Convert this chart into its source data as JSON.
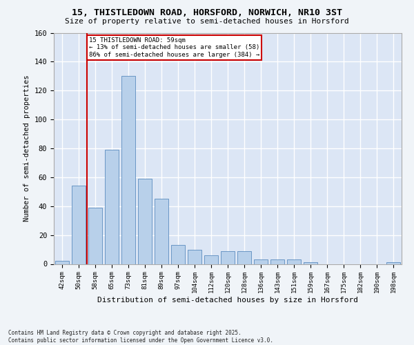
{
  "title_line1": "15, THISTLEDOWN ROAD, HORSFORD, NORWICH, NR10 3ST",
  "title_line2": "Size of property relative to semi-detached houses in Horsford",
  "xlabel": "Distribution of semi-detached houses by size in Horsford",
  "ylabel": "Number of semi-detached properties",
  "categories": [
    "42sqm",
    "50sqm",
    "58sqm",
    "65sqm",
    "73sqm",
    "81sqm",
    "89sqm",
    "97sqm",
    "104sqm",
    "112sqm",
    "120sqm",
    "128sqm",
    "136sqm",
    "143sqm",
    "151sqm",
    "159sqm",
    "167sqm",
    "175sqm",
    "182sqm",
    "190sqm",
    "198sqm"
  ],
  "values": [
    2,
    54,
    39,
    79,
    130,
    59,
    45,
    13,
    10,
    6,
    9,
    9,
    3,
    3,
    3,
    1,
    0,
    0,
    0,
    0,
    1
  ],
  "bar_color": "#b8d0ea",
  "bar_edge_color": "#5b8cbf",
  "bg_color": "#dce6f5",
  "grid_color": "#ffffff",
  "vline_x_index": 1.5,
  "property_label": "15 THISTLEDOWN ROAD: 59sqm",
  "annotation_line1": "← 13% of semi-detached houses are smaller (58)",
  "annotation_line2": "86% of semi-detached houses are larger (384) →",
  "annotation_box_facecolor": "#ffffff",
  "annotation_box_edgecolor": "#cc0000",
  "vline_color": "#cc0000",
  "footer_line1": "Contains HM Land Registry data © Crown copyright and database right 2025.",
  "footer_line2": "Contains public sector information licensed under the Open Government Licence v3.0.",
  "ylim_max": 160,
  "yticks": [
    0,
    20,
    40,
    60,
    80,
    100,
    120,
    140,
    160
  ],
  "fig_facecolor": "#f0f4f8"
}
